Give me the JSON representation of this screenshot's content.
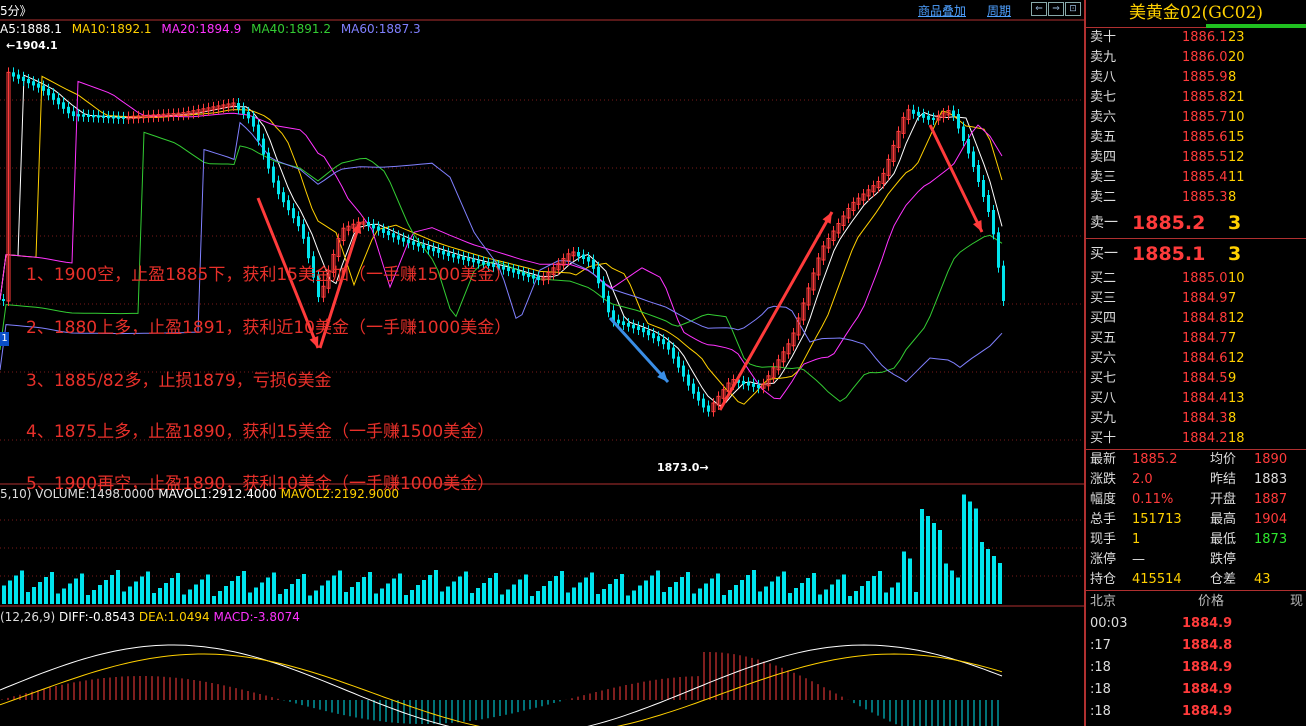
{
  "header": {
    "period_tab": "5分》",
    "overlay_tab": "商品叠加",
    "cycle_tab": "周期",
    "nav_buttons": [
      "⇐",
      "⇒",
      "⊡"
    ]
  },
  "ma_legend": {
    "ma5": "A5:1888.1",
    "ma10": "MA10:1892.1",
    "ma20": "MA20:1894.9",
    "ma40": "MA40:1891.2",
    "ma60": "MA60:1887.3",
    "colors": {
      "ma5": "#ffffff",
      "ma10": "#ffd000",
      "ma20": "#ff33ff",
      "ma40": "#33cc33",
      "ma60": "#8080ff"
    }
  },
  "price_marks": {
    "high": "1904.1",
    "low": "1873.0"
  },
  "annotations": [
    "1、1900空，止盈1885下，获利15美金加（一手赚1500美金）",
    "2、1880上多，止盈1891，获利近10美金（一手赚1000美金）",
    "3、1885/82多，止损1879，亏损6美金",
    "4、1875上多，止盈1890，获利15美金（一手赚1500美金）",
    "5、1900再空，止盈1890，获利10美金（一手赚1000美金）"
  ],
  "volume_legend": {
    "prefix": "5,10) VOLUME:1498.0000",
    "mavol1": "MAVOL1:2912.4000",
    "mavol2": "MAVOL2:2192.9000"
  },
  "macd_legend": {
    "prefix": "(12,26,9)",
    "diff": "DIFF:-0.8543",
    "dea": "DEA:1.0494",
    "macd": "MACD:-3.8074"
  },
  "left_marker": "1",
  "side": {
    "title": "美黄金02(GC02)",
    "asks": [
      {
        "label": "卖十",
        "price": "1886.1",
        "qty": "23"
      },
      {
        "label": "卖九",
        "price": "1886.0",
        "qty": "20"
      },
      {
        "label": "卖八",
        "price": "1885.9",
        "qty": "8"
      },
      {
        "label": "卖七",
        "price": "1885.8",
        "qty": "21"
      },
      {
        "label": "卖六",
        "price": "1885.7",
        "qty": "10"
      },
      {
        "label": "卖五",
        "price": "1885.6",
        "qty": "15"
      },
      {
        "label": "卖四",
        "price": "1885.5",
        "qty": "12"
      },
      {
        "label": "卖三",
        "price": "1885.4",
        "qty": "11"
      },
      {
        "label": "卖二",
        "price": "1885.3",
        "qty": "8"
      }
    ],
    "best_ask": {
      "label": "卖一",
      "price": "1885.2",
      "qty": "3"
    },
    "best_bid": {
      "label": "买一",
      "price": "1885.1",
      "qty": "3"
    },
    "bids": [
      {
        "label": "买二",
        "price": "1885.0",
        "qty": "10"
      },
      {
        "label": "买三",
        "price": "1884.9",
        "qty": "7"
      },
      {
        "label": "买四",
        "price": "1884.8",
        "qty": "12"
      },
      {
        "label": "买五",
        "price": "1884.7",
        "qty": "7"
      },
      {
        "label": "买六",
        "price": "1884.6",
        "qty": "12"
      },
      {
        "label": "买七",
        "price": "1884.5",
        "qty": "9"
      },
      {
        "label": "买八",
        "price": "1884.4",
        "qty": "13"
      },
      {
        "label": "买九",
        "price": "1884.3",
        "qty": "8"
      },
      {
        "label": "买十",
        "price": "1884.2",
        "qty": "18"
      }
    ],
    "stats": [
      {
        "l1": "最新",
        "v1": "1885.2",
        "c1": "#ff3b3b",
        "l2": "均价",
        "v2": "1890",
        "c2": "#ff3b3b"
      },
      {
        "l1": "涨跌",
        "v1": "2.0",
        "c1": "#ff3b3b",
        "l2": "昨结",
        "v2": "1883",
        "c2": "#dddddd"
      },
      {
        "l1": "幅度",
        "v1": "0.11%",
        "c1": "#ff3b3b",
        "l2": "开盘",
        "v2": "1887",
        "c2": "#ff3b3b"
      },
      {
        "l1": "总手",
        "v1": "151713",
        "c1": "#ffd000",
        "l2": "最高",
        "v2": "1904",
        "c2": "#ff3b3b"
      },
      {
        "l1": "现手",
        "v1": "1",
        "c1": "#ffd000",
        "l2": "最低",
        "v2": "1873",
        "c2": "#2ee62e"
      },
      {
        "l1": "涨停",
        "v1": "—",
        "c1": "#dddddd",
        "l2": "跌停",
        "v2": "",
        "c2": "#dddddd"
      },
      {
        "l1": "持仓",
        "v1": "415514",
        "c1": "#ffd000",
        "l2": "仓差",
        "v2": "43",
        "c2": "#ffd000"
      }
    ],
    "ticks_header": {
      "time": "北京",
      "price": "价格",
      "vol": "现"
    },
    "ticks": [
      {
        "time": "00:03",
        "price": "1884.9"
      },
      {
        "time": ":17",
        "price": "1884.8"
      },
      {
        "time": ":18",
        "price": "1884.9"
      },
      {
        "time": ":18",
        "price": "1884.9"
      },
      {
        "time": ":18",
        "price": "1884.9"
      }
    ]
  }
}
